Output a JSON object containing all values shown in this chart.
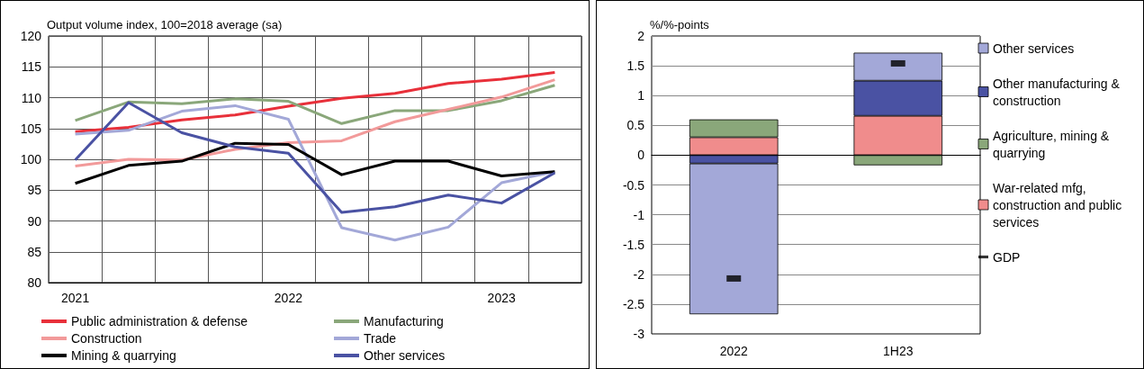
{
  "chart_data": [
    {
      "type": "line",
      "ylabel": "Output volume index, 100=2018 average (sa)",
      "categories": [
        "2021",
        null,
        null,
        null,
        "2022",
        null,
        null,
        null,
        "2023",
        null
      ],
      "ylim": [
        80,
        120
      ],
      "yticks": [
        80,
        85,
        90,
        95,
        100,
        105,
        110,
        115,
        120
      ],
      "grid": true,
      "legend": "bottom",
      "marker": "none",
      "series": [
        {
          "name": "Public administration & defense",
          "color": "#e8303a",
          "values": [
            104.5,
            105.2,
            106.4,
            107.2,
            108.6,
            109.9,
            110.7,
            112.3,
            113.0,
            114.1
          ]
        },
        {
          "name": "Manufacturing",
          "color": "#8aa77a",
          "values": [
            106.3,
            109.3,
            109.0,
            109.8,
            109.4,
            105.8,
            107.9,
            107.9,
            109.5,
            112.0
          ]
        },
        {
          "name": "Construction",
          "color": "#f29a9a",
          "values": [
            98.9,
            100.0,
            99.9,
            101.6,
            102.7,
            103.0,
            106.1,
            108.1,
            110.1,
            112.9
          ]
        },
        {
          "name": "Trade",
          "color": "#a3a8d8",
          "values": [
            104.1,
            104.7,
            107.8,
            108.7,
            106.5,
            88.9,
            86.9,
            89.0,
            96.2,
            98.0
          ]
        },
        {
          "name": "Mining & quarrying",
          "color": "#000000",
          "values": [
            96.1,
            99.0,
            99.7,
            102.6,
            102.4,
            97.5,
            99.7,
            99.7,
            97.3,
            98.0
          ]
        },
        {
          "name": "Other services",
          "color": "#4a52a3",
          "values": [
            99.9,
            109.2,
            104.3,
            102.0,
            101.0,
            91.4,
            92.3,
            94.2,
            92.9,
            97.8
          ]
        }
      ]
    },
    {
      "type": "bar",
      "ylabel": "%/%-points",
      "categories": [
        "2022",
        "1H23"
      ],
      "ylim": [
        -3,
        2
      ],
      "yticks": [
        -3,
        -2.5,
        -2,
        -1.5,
        -1,
        -0.5,
        0,
        0.5,
        1,
        1.5,
        2
      ],
      "grid": "y",
      "legend": "right",
      "stacked": true,
      "series": [
        {
          "name": "War-related mfg, construction and public services",
          "color": "#f08c8c",
          "values": [
            0.3,
            0.66
          ]
        },
        {
          "name": "Agriculture, mining & quarrying",
          "color": "#8aa77a",
          "values": [
            0.3,
            -0.17
          ]
        },
        {
          "name": "Other manufacturing & construction",
          "color": "#4a52a3",
          "values": [
            -0.14,
            0.59
          ]
        },
        {
          "name": "Other services",
          "color": "#a3a8d8",
          "values": [
            -2.53,
            0.47
          ]
        },
        {
          "name": "GDP",
          "type": "scatter",
          "color": "#000000",
          "values": [
            -2.07,
            1.54
          ]
        }
      ]
    }
  ]
}
